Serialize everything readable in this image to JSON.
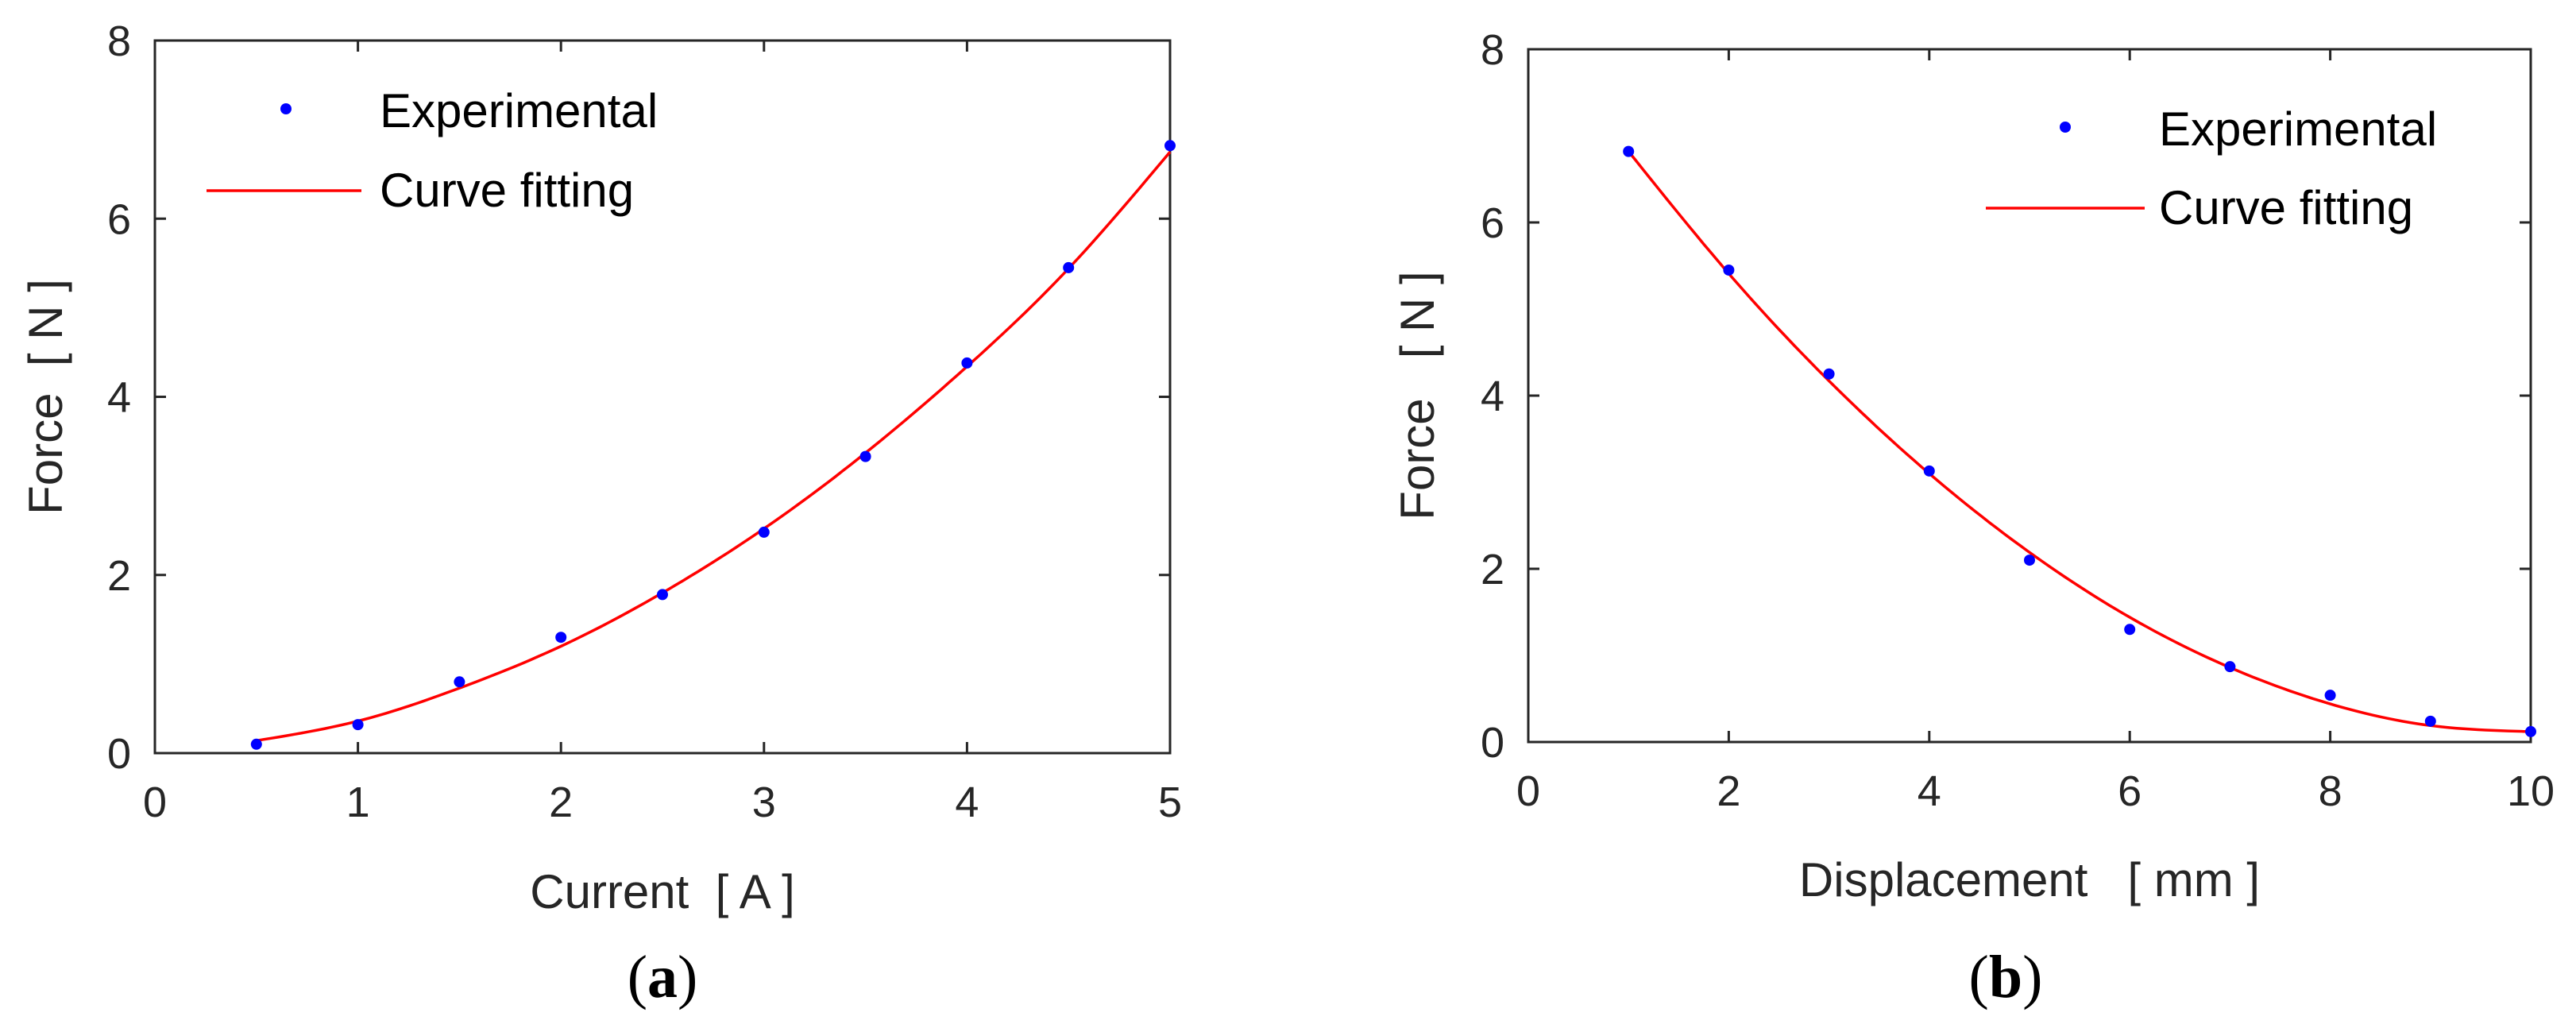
{
  "colors": {
    "experimental": "#0000ff",
    "fit": "#ff0000",
    "axis": "#262626",
    "background": "#ffffff"
  },
  "chart_data": [
    {
      "type": "scatter",
      "caption": {
        "open": "(",
        "letter": "a",
        "close": ")"
      },
      "xlabel": "Current  [ A ]",
      "ylabel": "Force  [ N ]",
      "xlim": [
        0,
        5
      ],
      "ylim": [
        0,
        8
      ],
      "xticks": [
        0,
        1,
        2,
        3,
        4,
        5
      ],
      "yticks": [
        0,
        2,
        4,
        6,
        8
      ],
      "grid": false,
      "legend_position": "top-left",
      "series": [
        {
          "name": "Experimental",
          "kind": "markers",
          "x": [
            0.5,
            1.0,
            1.5,
            2.0,
            2.5,
            3.0,
            3.5,
            4.0,
            4.5,
            5.0
          ],
          "y": [
            0.1,
            0.32,
            0.8,
            1.3,
            1.78,
            2.48,
            3.33,
            4.38,
            5.45,
            6.82
          ]
        },
        {
          "name": "Curve fitting",
          "kind": "line",
          "x": [
            0.5,
            1.0,
            1.5,
            2.0,
            2.5,
            3.0,
            3.5,
            4.0,
            4.5,
            5.0
          ],
          "y": [
            0.14,
            0.36,
            0.73,
            1.2,
            1.8,
            2.52,
            3.37,
            4.34,
            5.44,
            6.75
          ]
        }
      ]
    },
    {
      "type": "scatter",
      "caption": {
        "open": "(",
        "letter": "b",
        "close": ")"
      },
      "xlabel": "Displacement   [ mm ]",
      "ylabel": "Force   [ N ]",
      "xlim": [
        0,
        10
      ],
      "ylim": [
        0,
        8
      ],
      "xticks": [
        0,
        2,
        4,
        6,
        8,
        10
      ],
      "yticks": [
        0,
        2,
        4,
        6,
        8
      ],
      "grid": false,
      "legend_position": "top-right",
      "series": [
        {
          "name": "Experimental",
          "kind": "markers",
          "x": [
            1,
            2,
            3,
            4,
            5,
            6,
            7,
            8,
            9,
            10
          ],
          "y": [
            6.82,
            5.45,
            4.25,
            3.13,
            2.1,
            1.3,
            0.87,
            0.54,
            0.24,
            0.12
          ]
        },
        {
          "name": "Curve fitting",
          "kind": "line",
          "x": [
            1,
            2,
            3,
            4,
            5,
            6,
            7,
            8,
            9,
            10
          ],
          "y": [
            6.82,
            5.41,
            4.17,
            3.1,
            2.19,
            1.44,
            0.86,
            0.44,
            0.19,
            0.12
          ]
        }
      ]
    }
  ]
}
